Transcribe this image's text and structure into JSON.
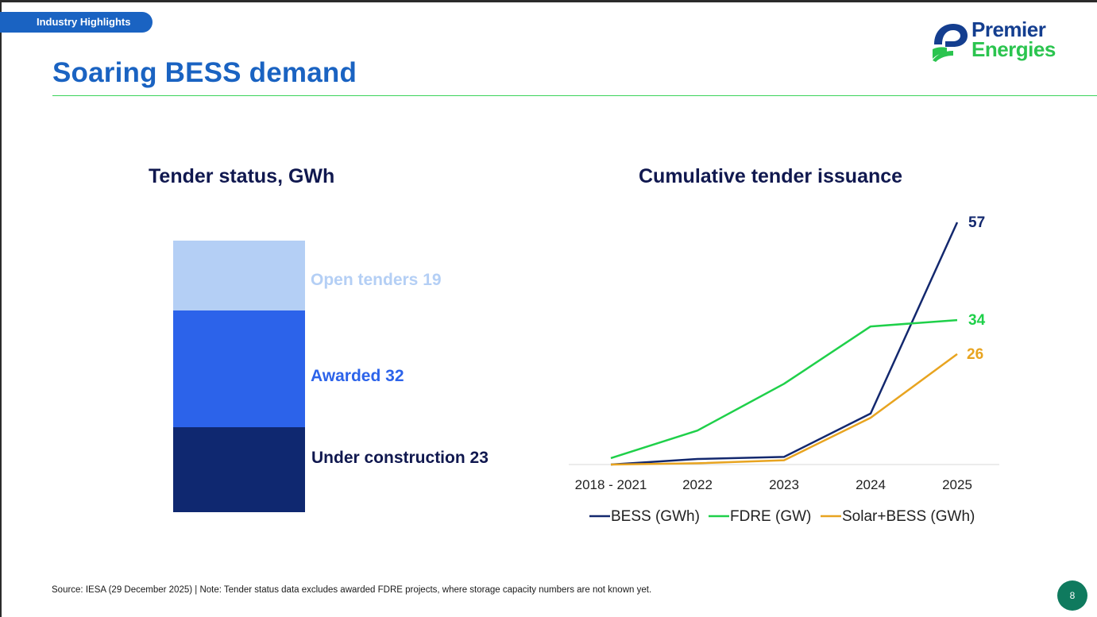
{
  "header": {
    "section_label": "Industry Highlights",
    "title": "Soaring BESS demand"
  },
  "logo": {
    "line1": "Premier",
    "line2": "Energies"
  },
  "colors": {
    "accent_blue": "#1a63c2",
    "navy": "#10184f",
    "rule_green": "#3bd45a",
    "bess": "#13286e",
    "fdre": "#1fd04a",
    "solar_bess": "#e8a420",
    "open": "#b4cff5",
    "awarded": "#2c63ea",
    "under_construction": "#0f2870"
  },
  "chart_data": [
    {
      "type": "bar",
      "stacked": true,
      "title": "Tender status, GWh",
      "segments": [
        {
          "name": "Under construction",
          "value": 23,
          "label": "Under construction 23",
          "color": "#0f2870",
          "label_color": "#10184f"
        },
        {
          "name": "Awarded",
          "value": 32,
          "label": "Awarded 32",
          "color": "#2c63ea",
          "label_color": "#2c63ea"
        },
        {
          "name": "Open tenders",
          "value": 19,
          "label": "Open tenders 19",
          "color": "#b4cff5",
          "label_color": "#b4cff5"
        }
      ]
    },
    {
      "type": "line",
      "title": "Cumulative tender issuance",
      "categories": [
        "2018 - 2021",
        "2022",
        "2023",
        "2024",
        "2025"
      ],
      "ylim": [
        0,
        57
      ],
      "series": [
        {
          "name": "BESS (GWh)",
          "color": "#13286e",
          "values": [
            0,
            1.3,
            1.8,
            12,
            57
          ],
          "end_label": "57"
        },
        {
          "name": "FDRE (GW)",
          "color": "#1fd04a",
          "values": [
            1.5,
            8,
            19,
            32.5,
            34
          ],
          "end_label": "34"
        },
        {
          "name": "Solar+BESS (GWh)",
          "color": "#e8a420",
          "values": [
            0,
            0.3,
            1,
            11,
            26
          ],
          "end_label": "26"
        }
      ],
      "legend_position": "bottom"
    }
  ],
  "footer": {
    "source_note": "Source: IESA (29 December 2025) | Note: Tender status data excludes awarded FDRE projects, where storage capacity numbers are not known yet.",
    "page_number": "8"
  }
}
